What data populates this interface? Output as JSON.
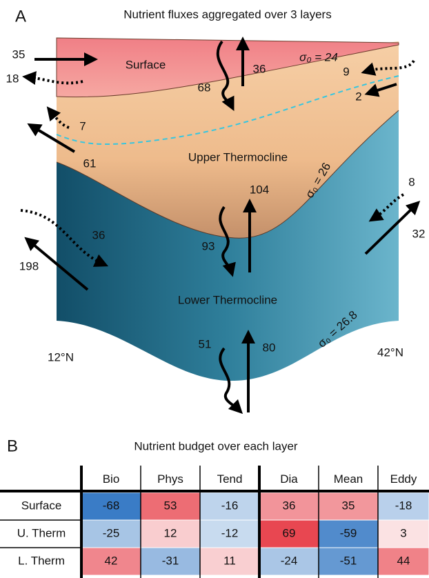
{
  "panel_a": {
    "label": "A",
    "title": "Nutrient fluxes aggregated over 3 layers",
    "layers": [
      "Surface",
      "Upper Thermocline",
      "Lower Thermocline"
    ],
    "isopycnals": [
      "σ₀ = 24",
      "σ₀ = 26",
      "σ₀ = 26.8"
    ],
    "fluxes": [
      35,
      18,
      68,
      36,
      9,
      2,
      7,
      61,
      104,
      93,
      36,
      198,
      8,
      32,
      51,
      80
    ],
    "latitudes": [
      "12°N",
      "42°N"
    ]
  },
  "panel_b": {
    "label": "B",
    "title": "Nutrient budget over each layer",
    "columns": [
      "Bio",
      "Phys",
      "Tend",
      "Dia",
      "Mean",
      "Eddy"
    ],
    "rows": [
      {
        "name": "Surface",
        "values": [
          -68,
          53,
          -16,
          36,
          35,
          -18
        ]
      },
      {
        "name": "U. Therm",
        "values": [
          -25,
          12,
          -12,
          69,
          -59,
          3
        ]
      },
      {
        "name": "L. Therm",
        "values": [
          42,
          -31,
          11,
          -24,
          -51,
          44
        ]
      }
    ]
  }
}
